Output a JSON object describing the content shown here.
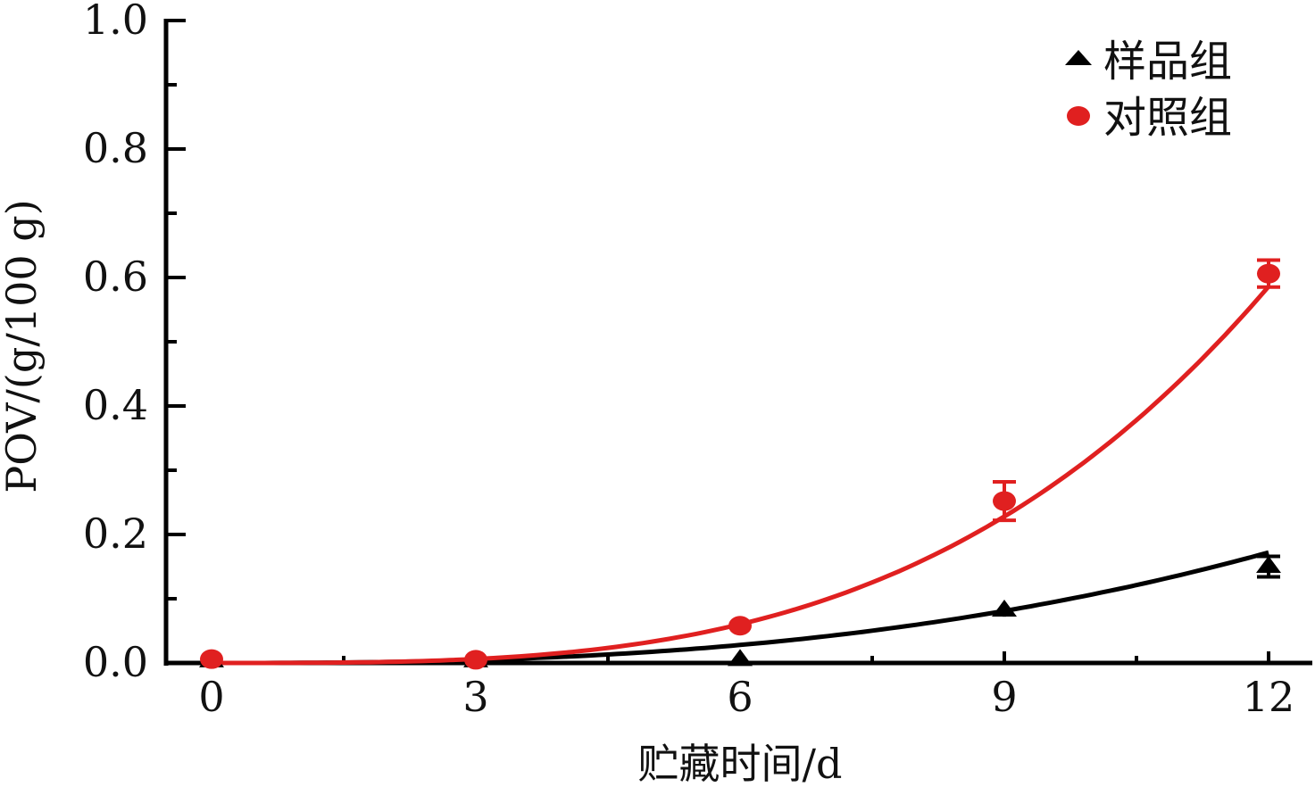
{
  "chart_data": {
    "type": "line",
    "title": "",
    "xlabel": "贮藏时间/d",
    "ylabel": "POV/(g/100 g)",
    "x": [
      0,
      3,
      6,
      9,
      12
    ],
    "xticks": [
      "0",
      "3",
      "6",
      "9",
      "12"
    ],
    "yticks": [
      "0.0",
      "0.2",
      "0.4",
      "0.6",
      "0.8",
      "1.0"
    ],
    "xlim": [
      -1.7,
      13.6
    ],
    "ylim": [
      0,
      1.0
    ],
    "grid": false,
    "legend_position": "upper right",
    "series": [
      {
        "name": "样品组",
        "marker": "triangle",
        "color": "#000000",
        "values": [
          0.003,
          0.003,
          0.005,
          0.082,
          0.15
        ],
        "errors": [
          0.01,
          0.01,
          0.005,
          0.01,
          0.016
        ],
        "fit": "exponential",
        "fit_values": [
          0.0,
          0.001,
          0.027,
          0.081,
          0.172
        ]
      },
      {
        "name": "对照组",
        "marker": "circle",
        "color": "#e02020",
        "values": [
          0.006,
          0.005,
          0.058,
          0.252,
          0.606
        ],
        "errors": [
          0.01,
          0.01,
          0.006,
          0.03,
          0.021
        ],
        "fit": "exponential",
        "fit_values": [
          0.0,
          0.002,
          0.058,
          0.228,
          0.586
        ]
      }
    ]
  }
}
